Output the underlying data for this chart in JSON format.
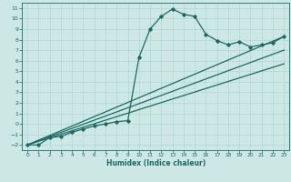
{
  "bg_color": "#cde8e4",
  "grid_color": "#b0d8d4",
  "line_color": "#1a6b64",
  "xlabel": "Humidex (Indice chaleur)",
  "xlim": [
    -0.5,
    23.5
  ],
  "ylim": [
    -2.5,
    11.5
  ],
  "xticks": [
    0,
    1,
    2,
    3,
    4,
    5,
    6,
    7,
    8,
    9,
    10,
    11,
    12,
    13,
    14,
    15,
    16,
    17,
    18,
    19,
    20,
    21,
    22,
    23
  ],
  "yticks": [
    -2,
    -1,
    0,
    1,
    2,
    3,
    4,
    5,
    6,
    7,
    8,
    9,
    10,
    11
  ],
  "series": [
    {
      "x": [
        0,
        1,
        2,
        3,
        4,
        5,
        6,
        7,
        8,
        9,
        10,
        11,
        12,
        13,
        14,
        15,
        16,
        17,
        18,
        19,
        20,
        21,
        22,
        23
      ],
      "y": [
        -2,
        -2,
        -1.3,
        -1.2,
        -0.8,
        -0.5,
        -0.2,
        0.0,
        0.2,
        0.3,
        6.3,
        9.0,
        10.2,
        10.9,
        10.4,
        10.2,
        8.5,
        7.9,
        7.5,
        7.8,
        7.3,
        7.5,
        7.7,
        8.3
      ],
      "marker": "D",
      "markersize": 1.8,
      "linewidth": 0.9,
      "has_marker": true
    },
    {
      "x": [
        0,
        23
      ],
      "y": [
        -2,
        8.3
      ],
      "marker": null,
      "markersize": 0,
      "linewidth": 0.9,
      "has_marker": false
    },
    {
      "x": [
        0,
        23
      ],
      "y": [
        -2,
        7.0
      ],
      "marker": null,
      "markersize": 0,
      "linewidth": 0.9,
      "has_marker": false
    },
    {
      "x": [
        0,
        23
      ],
      "y": [
        -2,
        5.7
      ],
      "marker": null,
      "markersize": 0,
      "linewidth": 0.9,
      "has_marker": false
    }
  ]
}
